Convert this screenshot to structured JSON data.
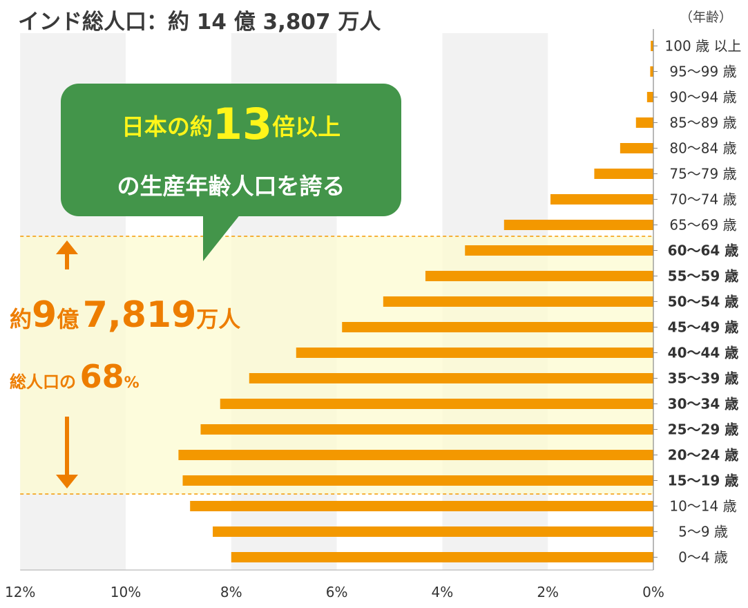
{
  "title": "インド総人口：約 14 億 3,807 万人",
  "axis_unit_label": "（年齢）",
  "callout": {
    "line1_prefix": "日本の約",
    "line1_number": "13",
    "line1_suffix": "倍以上",
    "line2": "の生産年齢人口を誇る"
  },
  "working_age": {
    "total_prefix": "約",
    "total_num1": "9",
    "total_unit1": "億",
    "total_num2": "7,819",
    "total_unit2": "万人",
    "share_label": "総人口の",
    "share_value": "68",
    "share_unit": "%"
  },
  "colors": {
    "bar": "#f39800",
    "highlight": "#fcfbd0",
    "callout": "#43954a",
    "callout_accent": "#fff51a",
    "emphasis": "#ed7d00",
    "grid_band": "#f2f2f2"
  },
  "chart_data": {
    "type": "bar",
    "orientation": "horizontal",
    "direction": "right-to-left",
    "xlim": [
      0,
      12
    ],
    "x_ticks": [
      "12%",
      "10%",
      "8%",
      "6%",
      "4%",
      "2%",
      "0%"
    ],
    "categories": [
      "100 歳 以上",
      "95〜99 歳",
      "90〜94 歳",
      "85〜89 歳",
      "80〜84 歳",
      "75〜79 歳",
      "70〜74 歳",
      "65〜69 歳",
      "60〜64 歳",
      "55〜59 歳",
      "50〜54 歳",
      "45〜49 歳",
      "40〜44 歳",
      "35〜39 歳",
      "30〜34 歳",
      "25〜29 歳",
      "20〜24 歳",
      "15〜19 歳",
      "10〜14 歳",
      "5〜9 歳",
      "0〜4 歳"
    ],
    "values": [
      0.05,
      0.06,
      0.12,
      0.33,
      0.63,
      1.12,
      1.95,
      2.83,
      3.57,
      4.32,
      5.12,
      5.9,
      6.77,
      7.66,
      8.21,
      8.58,
      9.0,
      8.92,
      8.78,
      8.35,
      8.0
    ],
    "highlight_range": [
      "60〜64 歳",
      "15〜19 歳"
    ],
    "grid": true
  }
}
